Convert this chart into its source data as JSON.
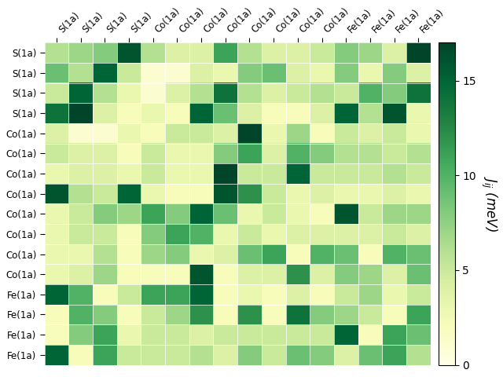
{
  "labels": [
    "S(1a)",
    "S(1a)",
    "S(1a)",
    "S(1a)",
    "Co(1a)",
    "Co(1a)",
    "Co(1a)",
    "Co(1a)",
    "Co(1a)",
    "Co(1a)",
    "Co(1a)",
    "Co(1a)",
    "Fe(1a)",
    "Fe(1a)",
    "Fe(1a)",
    "Fe(1a)"
  ],
  "matrix": [
    [
      6,
      7,
      8,
      16,
      6,
      4,
      4,
      11,
      6,
      4,
      4,
      5,
      8,
      7,
      4,
      17
    ],
    [
      9,
      6,
      15,
      5,
      1,
      1,
      4,
      3,
      8,
      9,
      4,
      3,
      8,
      3,
      8,
      4
    ],
    [
      5,
      15,
      6,
      3,
      1,
      4,
      6,
      14,
      6,
      4,
      5,
      6,
      5,
      10,
      8,
      14
    ],
    [
      14,
      17,
      4,
      2,
      3,
      2,
      15,
      9,
      4,
      2,
      2,
      4,
      15,
      6,
      16,
      3
    ],
    [
      4,
      1,
      1,
      3,
      2,
      5,
      5,
      4,
      17,
      3,
      7,
      2,
      5,
      4,
      5,
      3
    ],
    [
      5,
      4,
      4,
      2,
      5,
      3,
      3,
      8,
      11,
      4,
      10,
      8,
      6,
      6,
      5,
      6
    ],
    [
      3,
      4,
      4,
      3,
      5,
      3,
      3,
      17,
      5,
      5,
      15,
      5,
      5,
      5,
      6,
      5
    ],
    [
      16,
      6,
      5,
      15,
      3,
      2,
      2,
      16,
      12,
      5,
      3,
      4,
      3,
      3,
      4,
      3
    ],
    [
      3,
      5,
      8,
      7,
      11,
      8,
      15,
      9,
      3,
      5,
      3,
      2,
      16,
      5,
      7,
      7
    ],
    [
      3,
      5,
      5,
      2,
      8,
      11,
      10,
      3,
      5,
      3,
      4,
      4,
      4,
      4,
      5,
      4
    ],
    [
      3,
      3,
      6,
      2,
      7,
      8,
      3,
      4,
      9,
      11,
      2,
      10,
      9,
      2,
      10,
      9
    ],
    [
      3,
      4,
      7,
      2,
      2,
      2,
      16,
      2,
      4,
      4,
      12,
      4,
      8,
      7,
      4,
      9
    ],
    [
      15,
      10,
      2,
      5,
      11,
      11,
      15,
      2,
      3,
      2,
      4,
      2,
      5,
      7,
      3,
      5
    ],
    [
      2,
      10,
      8,
      2,
      5,
      7,
      12,
      2,
      12,
      2,
      14,
      8,
      7,
      5,
      2,
      11
    ],
    [
      2,
      8,
      11,
      3,
      5,
      5,
      4,
      5,
      5,
      5,
      5,
      5,
      15,
      2,
      11,
      9
    ],
    [
      15,
      2,
      11,
      5,
      5,
      5,
      6,
      4,
      8,
      5,
      9,
      8,
      4,
      9,
      11,
      6
    ]
  ],
  "vmin": 0,
  "vmax": 17,
  "cmap": "YlGn",
  "colorbar_label": "$J_{ij}$ (meV)",
  "colorbar_ticks": [
    0,
    5,
    10,
    15
  ],
  "figsize": [
    6.4,
    4.8
  ],
  "dpi": 100
}
